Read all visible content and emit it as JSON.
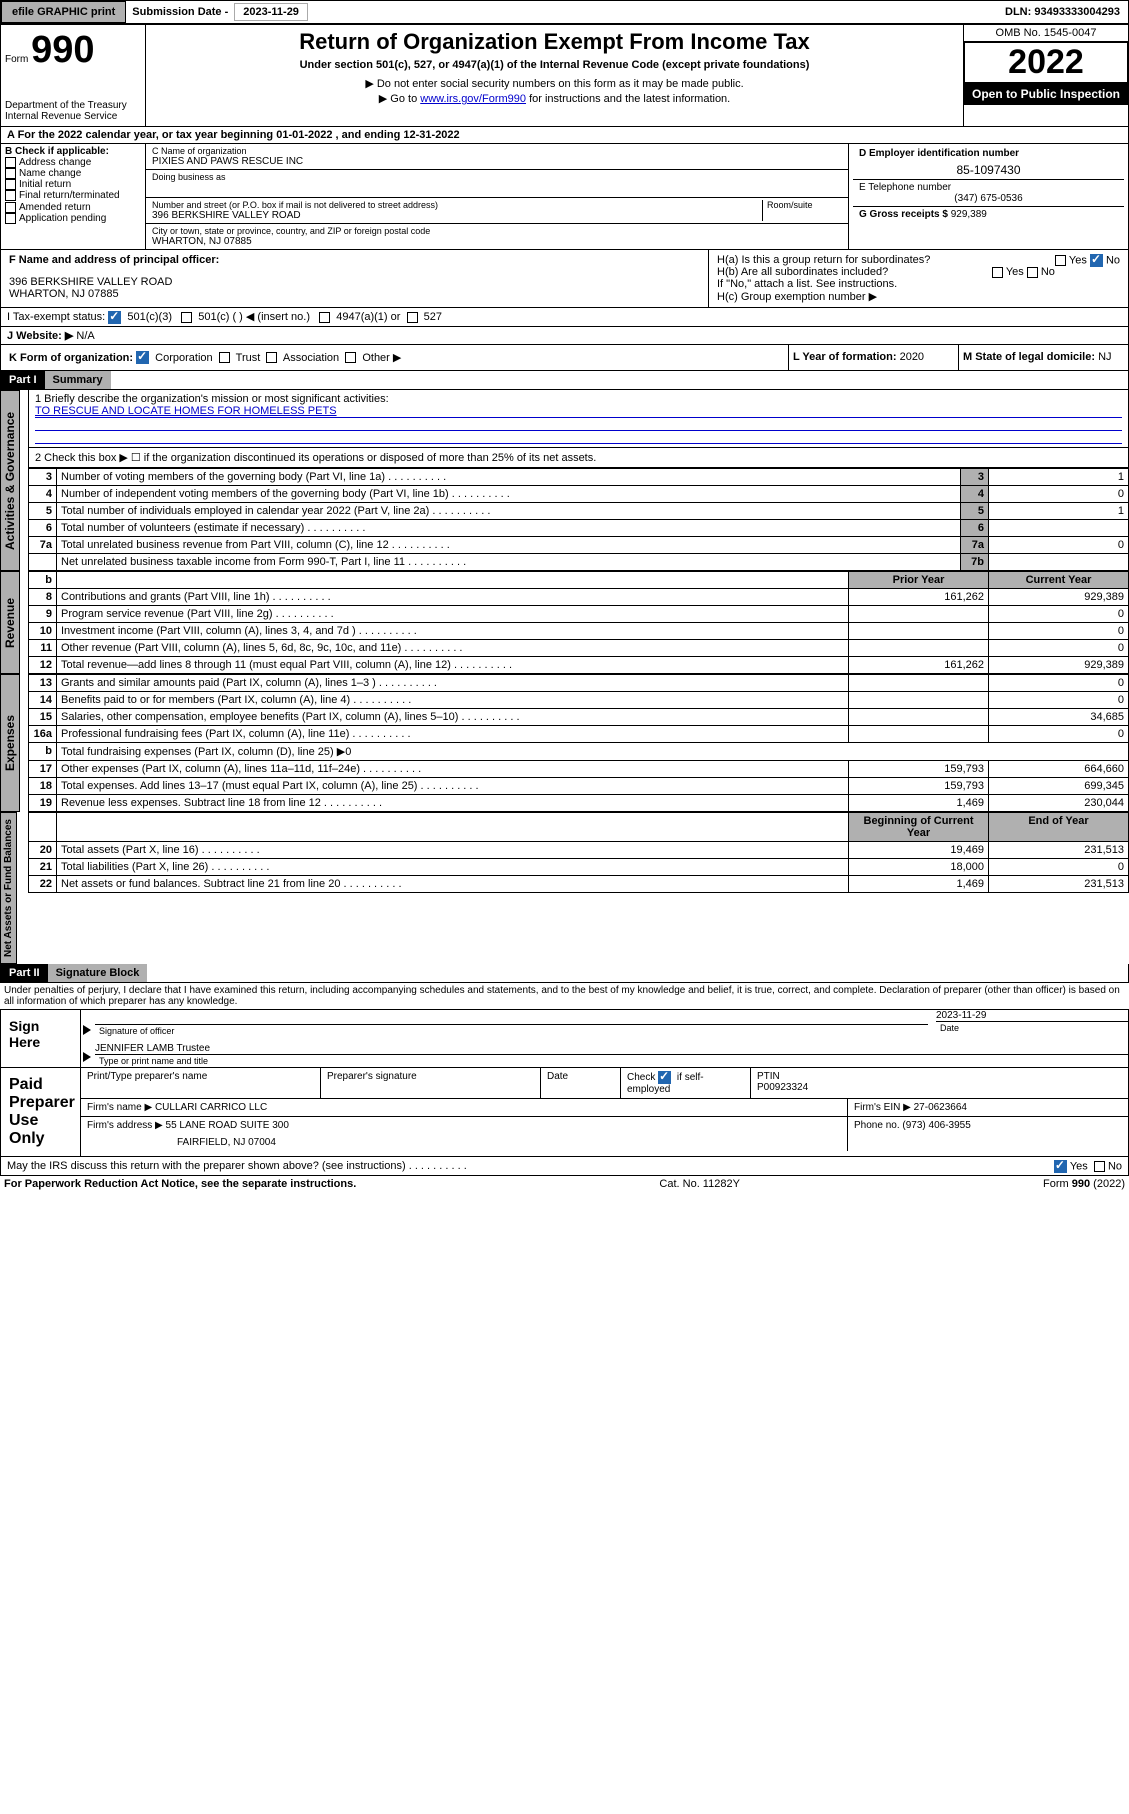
{
  "topbar": {
    "efile_btn": "efile GRAPHIC print",
    "sub_label": "Submission Date -",
    "sub_date": "2023-11-29",
    "dln_label": "DLN:",
    "dln": "93493333004293"
  },
  "header": {
    "form_word": "Form",
    "form_num": "990",
    "dept": "Department of the Treasury",
    "irs": "Internal Revenue Service",
    "title": "Return of Organization Exempt From Income Tax",
    "subtitle": "Under section 501(c), 527, or 4947(a)(1) of the Internal Revenue Code (except private foundations)",
    "warn1": "▶ Do not enter social security numbers on this form as it may be made public.",
    "warn2_pre": "▶ Go to ",
    "warn2_link": "www.irs.gov/Form990",
    "warn2_post": " for instructions and the latest information.",
    "omb": "OMB No. 1545-0047",
    "year": "2022",
    "open": "Open to Public Inspection"
  },
  "periodA": {
    "a_label": "A For the 2022 calendar year, or tax year beginning ",
    "begin": "01-01-2022",
    "mid": " , and ending ",
    "end": "12-31-2022"
  },
  "colB": {
    "label": "B Check if applicable:",
    "items": [
      "Address change",
      "Name change",
      "Initial return",
      "Final return/terminated",
      "Amended return",
      "Application pending"
    ]
  },
  "colC": {
    "name_label": "C Name of organization",
    "name": "PIXIES AND PAWS RESCUE INC",
    "dba_label": "Doing business as",
    "addr_label": "Number and street (or P.O. box if mail is not delivered to street address)",
    "room_label": "Room/suite",
    "addr": "396 BERKSHIRE VALLEY ROAD",
    "city_label": "City or town, state or province, country, and ZIP or foreign postal code",
    "city": "WHARTON, NJ  07885"
  },
  "colD": {
    "ein_label": "D Employer identification number",
    "ein": "85-1097430",
    "phone_label": "E Telephone number",
    "phone": "(347) 675-0536",
    "gross_label": "G Gross receipts $",
    "gross": "929,389"
  },
  "rowF": {
    "label": "F Name and address of principal officer:",
    "addr1": "396 BERKSHIRE VALLEY ROAD",
    "addr2": "WHARTON, NJ  07885"
  },
  "rowH": {
    "ha": "H(a)  Is this a group return for subordinates?",
    "hb": "H(b)  Are all subordinates included?",
    "hb_note": "If \"No,\" attach a list. See instructions.",
    "hc": "H(c)  Group exemption number ▶",
    "yes": "Yes",
    "no": "No"
  },
  "rowI": {
    "label": "I   Tax-exempt status:",
    "opts": [
      "501(c)(3)",
      "501(c) (  ) ◀ (insert no.)",
      "4947(a)(1) or",
      "527"
    ]
  },
  "rowJ": {
    "label": "J   Website: ▶",
    "val": "N/A"
  },
  "rowK": {
    "label": "K Form of organization:",
    "opts": [
      "Corporation",
      "Trust",
      "Association",
      "Other ▶"
    ]
  },
  "rowL": {
    "label": "L Year of formation:",
    "val": "2020"
  },
  "rowM": {
    "label": "M State of legal domicile:",
    "val": "NJ"
  },
  "part1": {
    "num": "Part I",
    "title": "Summary"
  },
  "summary": {
    "line1_label": "1   Briefly describe the organization's mission or most significant activities:",
    "line1_val": "TO RESCUE AND LOCATE HOMES FOR HOMELESS PETS",
    "line2": "2   Check this box ▶ ☐  if the organization discontinued its operations or disposed of more than 25% of its net assets.",
    "rows_top": [
      {
        "n": "3",
        "text": "Number of voting members of the governing body (Part VI, line 1a)",
        "box": "3",
        "val": "1"
      },
      {
        "n": "4",
        "text": "Number of independent voting members of the governing body (Part VI, line 1b)",
        "box": "4",
        "val": "0"
      },
      {
        "n": "5",
        "text": "Total number of individuals employed in calendar year 2022 (Part V, line 2a)",
        "box": "5",
        "val": "1"
      },
      {
        "n": "6",
        "text": "Total number of volunteers (estimate if necessary)",
        "box": "6",
        "val": ""
      },
      {
        "n": "7a",
        "text": "Total unrelated business revenue from Part VIII, column (C), line 12",
        "box": "7a",
        "val": "0"
      },
      {
        "n": "",
        "text": "Net unrelated business taxable income from Form 990-T, Part I, line 11",
        "box": "7b",
        "val": ""
      }
    ],
    "col_headers": {
      "b": "b",
      "prior": "Prior Year",
      "current": "Current Year"
    },
    "revenue": [
      {
        "n": "8",
        "text": "Contributions and grants (Part VIII, line 1h)",
        "prior": "161,262",
        "cur": "929,389"
      },
      {
        "n": "9",
        "text": "Program service revenue (Part VIII, line 2g)",
        "prior": "",
        "cur": "0"
      },
      {
        "n": "10",
        "text": "Investment income (Part VIII, column (A), lines 3, 4, and 7d )",
        "prior": "",
        "cur": "0"
      },
      {
        "n": "11",
        "text": "Other revenue (Part VIII, column (A), lines 5, 6d, 8c, 9c, 10c, and 11e)",
        "prior": "",
        "cur": "0"
      },
      {
        "n": "12",
        "text": "Total revenue—add lines 8 through 11 (must equal Part VIII, column (A), line 12)",
        "prior": "161,262",
        "cur": "929,389"
      }
    ],
    "expenses": [
      {
        "n": "13",
        "text": "Grants and similar amounts paid (Part IX, column (A), lines 1–3 )",
        "prior": "",
        "cur": "0"
      },
      {
        "n": "14",
        "text": "Benefits paid to or for members (Part IX, column (A), line 4)",
        "prior": "",
        "cur": "0"
      },
      {
        "n": "15",
        "text": "Salaries, other compensation, employee benefits (Part IX, column (A), lines 5–10)",
        "prior": "",
        "cur": "34,685"
      },
      {
        "n": "16a",
        "text": "Professional fundraising fees (Part IX, column (A), line 11e)",
        "prior": "",
        "cur": "0"
      },
      {
        "n": "b",
        "text": "Total fundraising expenses (Part IX, column (D), line 25) ▶0",
        "prior": "",
        "cur": "",
        "nocols": true
      },
      {
        "n": "17",
        "text": "Other expenses (Part IX, column (A), lines 11a–11d, 11f–24e)",
        "prior": "159,793",
        "cur": "664,660"
      },
      {
        "n": "18",
        "text": "Total expenses. Add lines 13–17 (must equal Part IX, column (A), line 25)",
        "prior": "159,793",
        "cur": "699,345"
      },
      {
        "n": "19",
        "text": "Revenue less expenses. Subtract line 18 from line 12",
        "prior": "1,469",
        "cur": "230,044"
      }
    ],
    "balance_hdr": {
      "begin": "Beginning of Current Year",
      "end": "End of Year"
    },
    "balances": [
      {
        "n": "20",
        "text": "Total assets (Part X, line 16)",
        "prior": "19,469",
        "cur": "231,513"
      },
      {
        "n": "21",
        "text": "Total liabilities (Part X, line 26)",
        "prior": "18,000",
        "cur": "0"
      },
      {
        "n": "22",
        "text": "Net assets or fund balances. Subtract line 21 from line 20",
        "prior": "1,469",
        "cur": "231,513"
      }
    ]
  },
  "side_labels": {
    "activities": "Activities & Governance",
    "revenue": "Revenue",
    "expenses": "Expenses",
    "netassets": "Net Assets or Fund Balances"
  },
  "part2": {
    "num": "Part II",
    "title": "Signature Block"
  },
  "sig": {
    "decl": "Under penalties of perjury, I declare that I have examined this return, including accompanying schedules and statements, and to the best of my knowledge and belief, it is true, correct, and complete. Declaration of preparer (other than officer) is based on all information of which preparer has any knowledge.",
    "sign_here": "Sign Here",
    "sig_officer": "Signature of officer",
    "date_label": "Date",
    "sig_date": "2023-11-29",
    "officer_name": "JENNIFER LAMB Trustee",
    "type_label": "Type or print name and title",
    "paid": "Paid Preparer Use Only",
    "prep_name_label": "Print/Type preparer's name",
    "prep_sig_label": "Preparer's signature",
    "check_label": "Check",
    "self_emp": "if self-employed",
    "ptin_label": "PTIN",
    "ptin": "P00923324",
    "firm_name_label": "Firm's name   ▶",
    "firm_name": "CULLARI CARRICO LLC",
    "firm_ein_label": "Firm's EIN ▶",
    "firm_ein": "27-0623664",
    "firm_addr_label": "Firm's address ▶",
    "firm_addr1": "55 LANE ROAD SUITE 300",
    "firm_addr2": "FAIRFIELD, NJ  07004",
    "phone_label": "Phone no.",
    "phone": "(973) 406-3955",
    "discuss": "May the IRS discuss this return with the preparer shown above? (see instructions)"
  },
  "footer": {
    "paperwork": "For Paperwork Reduction Act Notice, see the separate instructions.",
    "cat": "Cat. No. 11282Y",
    "form": "Form 990 (2022)"
  }
}
